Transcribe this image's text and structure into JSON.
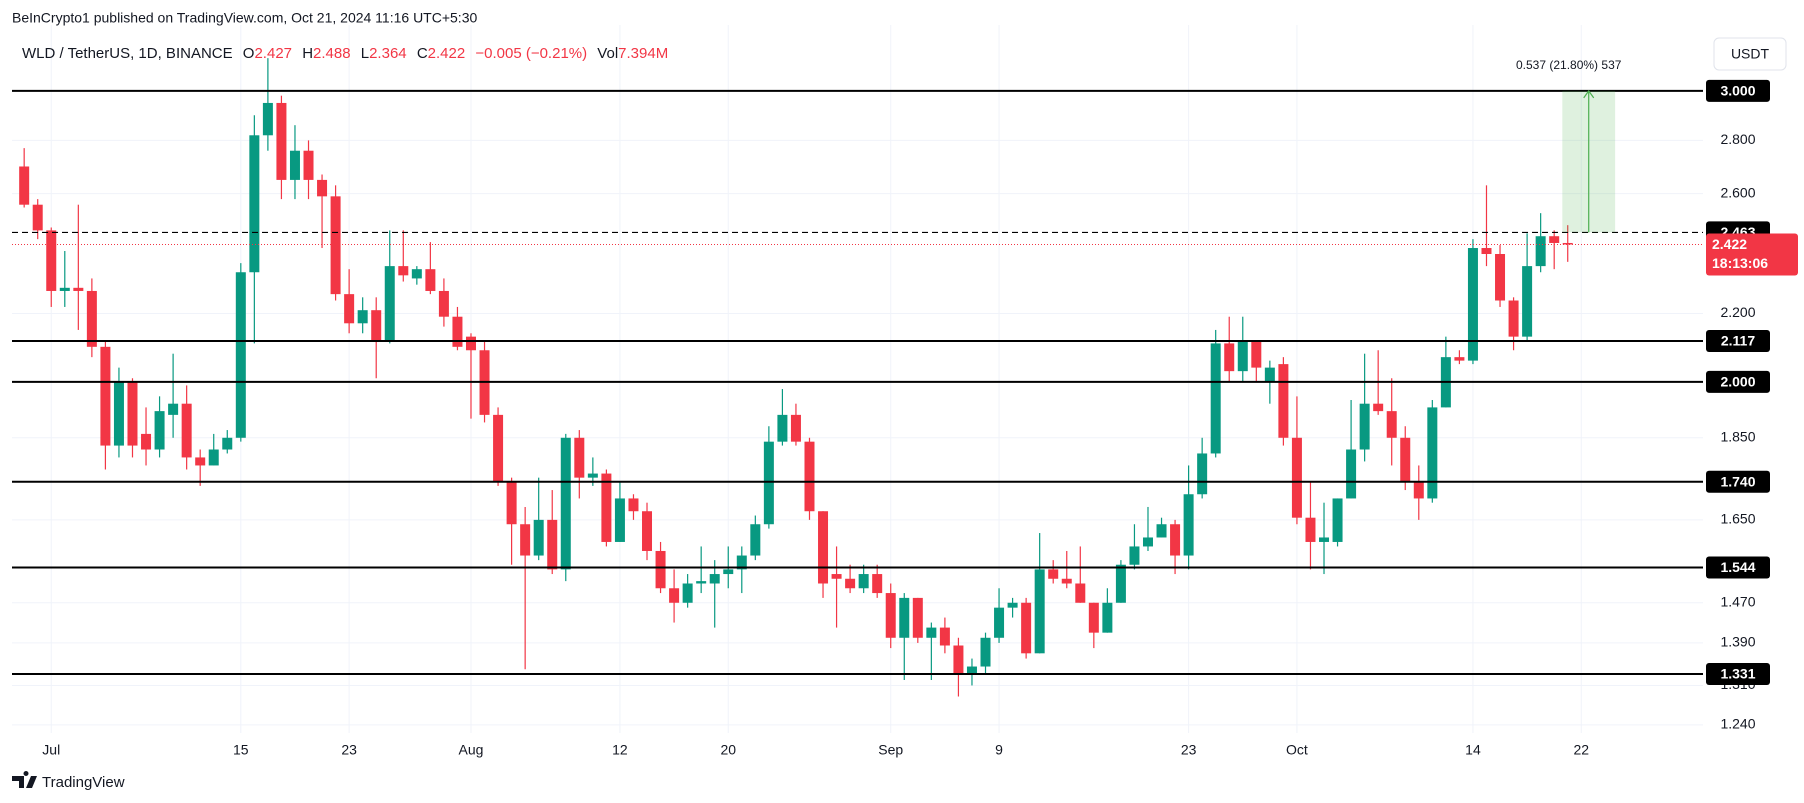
{
  "header": {
    "text": "BeInCrypto1 published on TradingView.com, Oct 21, 2024 11:16 UTC+5:30"
  },
  "legend": {
    "symbol": "WLD / TetherUS, 1D, BINANCE",
    "open_label": "O",
    "high_label": "H",
    "low_label": "L",
    "close_label": "C",
    "change": "−0.005 (−0.21%)",
    "volume_label": "Vol",
    "volume": "7.394M"
  },
  "currency_button": "USDT",
  "footer": {
    "logo_text": "TradingView"
  },
  "chart_data": {
    "type": "candlestick",
    "log_scale": true,
    "grid": true,
    "up_color": "#089981",
    "down_color": "#f23645",
    "categories": [
      null,
      null,
      "Jul",
      null,
      null,
      null,
      null,
      null,
      null,
      null,
      null,
      null,
      null,
      null,
      null,
      null,
      "15",
      null,
      null,
      null,
      null,
      null,
      null,
      null,
      "23",
      null,
      null,
      null,
      null,
      null,
      null,
      null,
      null,
      "Aug",
      null,
      null,
      null,
      null,
      null,
      null,
      null,
      null,
      null,
      null,
      "12",
      null,
      null,
      null,
      null,
      null,
      null,
      null,
      "20",
      null,
      null,
      null,
      null,
      null,
      null,
      null,
      null,
      null,
      null,
      null,
      "Sep",
      null,
      null,
      null,
      null,
      null,
      null,
      null,
      "9",
      null,
      null,
      null,
      null,
      null,
      null,
      null,
      null,
      null,
      null,
      null,
      null,
      null,
      "23",
      null,
      null,
      null,
      null,
      null,
      null,
      null,
      "Oct",
      null,
      null,
      null,
      null,
      null,
      null,
      null,
      null,
      null,
      null,
      null,
      null,
      "14",
      null,
      null,
      null,
      null,
      null,
      null,
      null,
      "22"
    ],
    "open": [
      2.7,
      2.56,
      2.47,
      2.27,
      2.28,
      2.27,
      2.1,
      1.83,
      2.0,
      1.86,
      1.82,
      1.91,
      1.94,
      1.8,
      1.78,
      1.82,
      1.85,
      2.33,
      2.82,
      2.95,
      2.65,
      2.76,
      2.65,
      2.59,
      2.26,
      2.17,
      2.21,
      2.12,
      2.35,
      2.31,
      2.34,
      2.27,
      2.19,
      2.13,
      2.09,
      1.91,
      1.74,
      1.64,
      1.57,
      1.65,
      1.54,
      1.85,
      1.75,
      1.76,
      1.6,
      1.7,
      1.67,
      1.58,
      1.5,
      1.47,
      1.51,
      1.51,
      1.53,
      1.54,
      1.57,
      1.64,
      1.84,
      1.91,
      1.84,
      1.67,
      1.53,
      1.52,
      1.5,
      1.53,
      1.49,
      1.4,
      1.48,
      1.4,
      1.42,
      1.385,
      1.33,
      1.345,
      1.4,
      1.46,
      1.47,
      1.37,
      1.54,
      1.52,
      1.51,
      1.47,
      1.41,
      1.47,
      1.55,
      1.59,
      1.61,
      1.64,
      1.57,
      1.71,
      1.81,
      2.11,
      2.03,
      2.12,
      2.0,
      2.05,
      1.85,
      1.655,
      1.6,
      1.6,
      1.7,
      1.82,
      1.94,
      1.92,
      1.85,
      1.74,
      1.7,
      1.93,
      2.07,
      2.06,
      2.41,
      2.39,
      2.24,
      2.13,
      2.35,
      2.45,
      2.427,
      null
    ],
    "high": [
      2.77,
      2.58,
      2.48,
      2.4,
      2.56,
      2.31,
      2.12,
      2.04,
      2.01,
      1.93,
      1.96,
      2.08,
      1.99,
      1.82,
      1.86,
      1.87,
      2.36,
      2.9,
      3.14,
      2.98,
      2.86,
      2.8,
      2.67,
      2.63,
      2.34,
      2.25,
      2.25,
      2.47,
      2.47,
      2.35,
      2.43,
      2.31,
      2.22,
      2.14,
      2.12,
      1.93,
      1.75,
      1.68,
      1.75,
      1.72,
      1.86,
      1.87,
      1.8,
      1.77,
      1.74,
      1.71,
      1.69,
      1.6,
      1.54,
      1.53,
      1.59,
      1.56,
      1.59,
      1.59,
      1.66,
      1.88,
      1.98,
      1.94,
      1.85,
      1.67,
      1.59,
      1.55,
      1.55,
      1.55,
      1.51,
      1.49,
      1.48,
      1.43,
      1.44,
      1.4,
      1.36,
      1.41,
      1.5,
      1.48,
      1.48,
      1.62,
      1.56,
      1.58,
      1.59,
      1.47,
      1.5,
      1.56,
      1.64,
      1.68,
      1.655,
      1.65,
      1.78,
      1.85,
      2.15,
      2.19,
      2.19,
      2.12,
      2.06,
      2.07,
      1.96,
      1.74,
      1.69,
      1.7,
      1.95,
      2.08,
      2.09,
      2.01,
      1.88,
      1.78,
      1.95,
      2.13,
      2.09,
      2.44,
      2.63,
      2.42,
      2.25,
      2.46,
      2.53,
      2.47,
      2.488,
      null
    ],
    "low": [
      2.55,
      2.44,
      2.22,
      2.22,
      2.15,
      2.07,
      1.77,
      1.8,
      1.8,
      1.78,
      1.8,
      1.85,
      1.77,
      1.73,
      1.78,
      1.81,
      1.84,
      2.11,
      2.76,
      2.58,
      2.58,
      2.58,
      2.41,
      2.24,
      2.14,
      2.14,
      2.01,
      2.11,
      2.3,
      2.29,
      2.26,
      2.16,
      2.09,
      1.9,
      1.89,
      1.73,
      1.55,
      1.34,
      1.56,
      1.53,
      1.515,
      1.7,
      1.73,
      1.59,
      1.6,
      1.65,
      1.56,
      1.49,
      1.43,
      1.46,
      1.49,
      1.42,
      1.5,
      1.49,
      1.56,
      1.63,
      1.83,
      1.83,
      1.65,
      1.48,
      1.42,
      1.49,
      1.49,
      1.48,
      1.38,
      1.32,
      1.39,
      1.32,
      1.37,
      1.29,
      1.31,
      1.33,
      1.39,
      1.44,
      1.36,
      1.37,
      1.51,
      1.5,
      1.47,
      1.38,
      1.41,
      1.47,
      1.54,
      1.58,
      1.61,
      1.53,
      1.54,
      1.7,
      1.8,
      2.0,
      2.0,
      2.0,
      1.94,
      1.83,
      1.64,
      1.54,
      1.53,
      1.59,
      1.7,
      1.79,
      1.91,
      1.78,
      1.72,
      1.65,
      1.69,
      1.93,
      2.05,
      2.05,
      2.35,
      2.22,
      2.09,
      2.12,
      2.33,
      2.34,
      2.364,
      null
    ],
    "close": [
      2.56,
      2.47,
      2.27,
      2.28,
      2.27,
      2.1,
      1.83,
      2.0,
      1.83,
      1.82,
      1.92,
      1.94,
      1.8,
      1.78,
      1.82,
      1.85,
      2.33,
      2.82,
      2.95,
      2.65,
      2.76,
      2.65,
      2.59,
      2.26,
      2.17,
      2.21,
      2.12,
      2.35,
      2.32,
      2.34,
      2.27,
      2.19,
      2.1,
      2.09,
      1.91,
      1.74,
      1.64,
      1.57,
      1.65,
      1.54,
      1.85,
      1.75,
      1.76,
      1.6,
      1.7,
      1.67,
      1.58,
      1.5,
      1.47,
      1.51,
      1.515,
      1.53,
      1.54,
      1.57,
      1.64,
      1.84,
      1.91,
      1.84,
      1.67,
      1.51,
      1.52,
      1.5,
      1.53,
      1.49,
      1.4,
      1.48,
      1.4,
      1.42,
      1.385,
      1.33,
      1.345,
      1.4,
      1.46,
      1.47,
      1.37,
      1.54,
      1.52,
      1.51,
      1.47,
      1.41,
      1.47,
      1.55,
      1.59,
      1.61,
      1.64,
      1.57,
      1.71,
      1.81,
      2.11,
      2.03,
      2.12,
      2.04,
      2.04,
      1.85,
      1.655,
      1.6,
      1.61,
      1.7,
      1.82,
      1.94,
      1.92,
      1.85,
      1.74,
      1.7,
      1.93,
      2.07,
      2.06,
      2.41,
      2.39,
      2.24,
      2.13,
      2.35,
      2.45,
      2.427,
      2.422,
      null
    ],
    "ylim": [
      1.226,
      3.243
    ],
    "yticks": [
      {
        "value": 2.8,
        "label": "2.800"
      },
      {
        "value": 2.6,
        "label": "2.600"
      },
      {
        "value": 2.2,
        "label": "2.200"
      },
      {
        "value": 1.85,
        "label": "1.850"
      },
      {
        "value": 1.65,
        "label": "1.650"
      },
      {
        "value": 1.47,
        "label": "1.470"
      },
      {
        "value": 1.39,
        "label": "1.390"
      },
      {
        "value": 1.31,
        "label": "1.310"
      },
      {
        "value": 1.24,
        "label": "1.240"
      }
    ],
    "levels": [
      {
        "value": 3,
        "label": "3.000"
      },
      {
        "value": 2.117,
        "label": "2.117"
      },
      {
        "value": 2,
        "label": "2.000"
      },
      {
        "value": 1.74,
        "label": "1.740"
      },
      {
        "value": 1.544,
        "label": "1.544"
      },
      {
        "value": 1.331,
        "label": "1.331"
      }
    ],
    "dashed_level": {
      "value": 2.463,
      "label": "2.463"
    },
    "last_price": {
      "value": 2.422,
      "label": "2.422",
      "countdown": "18:13:06"
    },
    "measure": {
      "from": 2.463,
      "to": 3,
      "label": "0.537 (21.80%) 537"
    }
  }
}
